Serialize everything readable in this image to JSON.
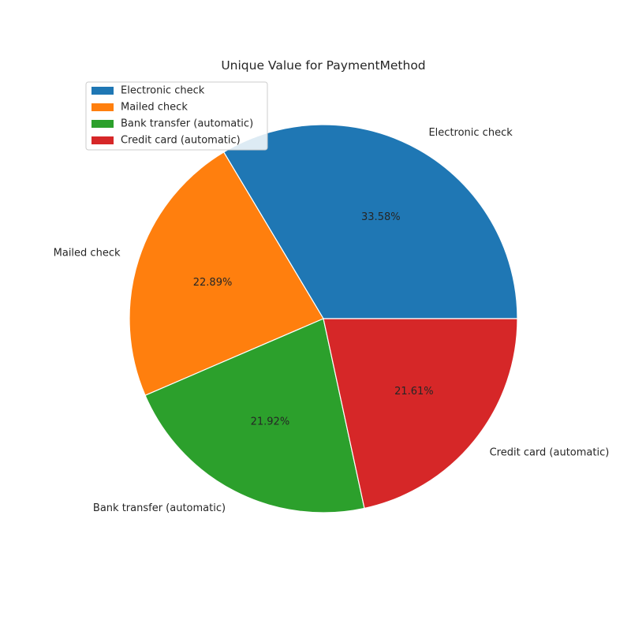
{
  "chart_data": {
    "type": "pie",
    "title": "Unique Value for PaymentMethod",
    "categories": [
      "Electronic check",
      "Mailed check",
      "Bank transfer (automatic)",
      "Credit card (automatic)"
    ],
    "values": [
      33.58,
      22.89,
      21.92,
      21.61
    ],
    "value_labels": [
      "33.58%",
      "22.89%",
      "21.92%",
      "21.61%"
    ],
    "colors": [
      "#1f77b4",
      "#ff7f0e",
      "#2ca02c",
      "#d62728"
    ],
    "legend": {
      "placement": "upper-left",
      "entries": [
        "Electronic check",
        "Mailed check",
        "Bank transfer (automatic)",
        "Credit card (automatic)"
      ]
    }
  }
}
